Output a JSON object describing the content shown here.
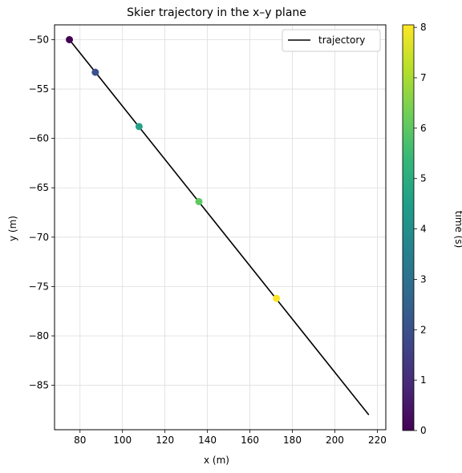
{
  "chart_data": {
    "type": "line",
    "title": "Skier trajectory in the x–y plane",
    "xlabel": "x (m)",
    "ylabel": "y (m)",
    "xlim": [
      68,
      224
    ],
    "ylim": [
      -89.5,
      -48.5
    ],
    "xticks": [
      80,
      100,
      120,
      140,
      160,
      180,
      200,
      220
    ],
    "yticks": [
      -50,
      -55,
      -60,
      -65,
      -70,
      -75,
      -80,
      -85
    ],
    "grid": true,
    "legend_position": "top-right",
    "series": [
      {
        "name": "trajectory",
        "color": "#000000",
        "x": [
          75,
          216
        ],
        "y": [
          -50,
          -88
        ]
      }
    ],
    "markers": [
      {
        "time": 0,
        "x": 75,
        "y": -50,
        "color": "#440154"
      },
      {
        "time": 1.8,
        "x": 87.2,
        "y": -53.3,
        "color": "#3b528b"
      },
      {
        "time": 4.4,
        "x": 107.8,
        "y": -58.8,
        "color": "#26a288"
      },
      {
        "time": 6.4,
        "x": 136.0,
        "y": -66.4,
        "color": "#5ec962"
      },
      {
        "time": 8.05,
        "x": 172.5,
        "y": -76.2,
        "color": "#fde725"
      }
    ],
    "colorbar": {
      "label": "time (s)",
      "min": 0,
      "max": 8.05,
      "ticks": [
        0,
        1,
        2,
        3,
        4,
        5,
        6,
        7,
        8
      ],
      "colormap": [
        "#440154",
        "#482878",
        "#3e4989",
        "#31688e",
        "#26828e",
        "#1f9e89",
        "#35b779",
        "#6ece58",
        "#b5de2b",
        "#fde725"
      ]
    }
  }
}
